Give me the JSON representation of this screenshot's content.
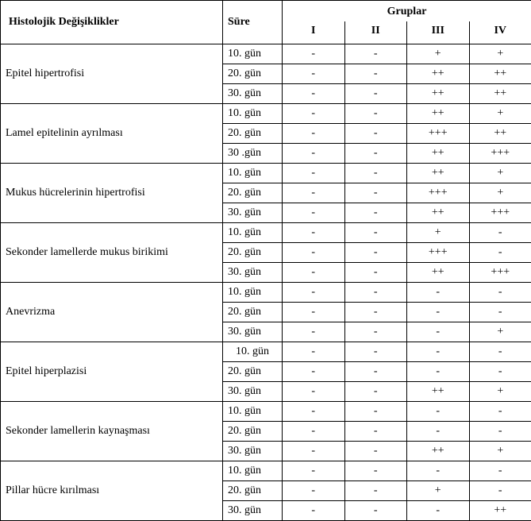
{
  "header": {
    "changes_label": "Histolojik Değişiklikler",
    "sure_label": "Süre",
    "gruplar_label": "Gruplar",
    "group_labels": [
      "I",
      "II",
      "III",
      "IV"
    ]
  },
  "rows": [
    {
      "change": "Epitel hipertrofisi",
      "periods": [
        {
          "sure": "10. gün",
          "sure_align": "left",
          "vals": [
            "-",
            "-",
            "+",
            "+"
          ]
        },
        {
          "sure": "20. gün",
          "sure_align": "left",
          "vals": [
            "-",
            "-",
            "++",
            "++"
          ]
        },
        {
          "sure": "30. gün",
          "sure_align": "left",
          "vals": [
            "-",
            "-",
            "++",
            "++"
          ]
        }
      ]
    },
    {
      "change": "Lamel epitelinin ayrılması",
      "periods": [
        {
          "sure": "10. gün",
          "sure_align": "left",
          "vals": [
            "-",
            "-",
            "++",
            "+"
          ]
        },
        {
          "sure": "20. gün",
          "sure_align": "left",
          "vals": [
            "-",
            "-",
            "+++",
            "++"
          ]
        },
        {
          "sure": "30 .gün",
          "sure_align": "left",
          "vals": [
            "-",
            "-",
            "++",
            "+++"
          ]
        }
      ]
    },
    {
      "change": "Mukus hücrelerinin hipertrofisi",
      "periods": [
        {
          "sure": "10. gün",
          "sure_align": "left",
          "vals": [
            "-",
            "-",
            "++",
            "+"
          ]
        },
        {
          "sure": "20. gün",
          "sure_align": "left",
          "vals": [
            "-",
            "-",
            "+++",
            "+"
          ]
        },
        {
          "sure": "30. gün",
          "sure_align": "left",
          "vals": [
            "-",
            "-",
            "++",
            "+++"
          ]
        }
      ]
    },
    {
      "change": "Sekonder lamellerde mukus birikimi",
      "periods": [
        {
          "sure": "10. gün",
          "sure_align": "left",
          "vals": [
            "-",
            "-",
            "+",
            "-"
          ]
        },
        {
          "sure": "20. gün",
          "sure_align": "left",
          "vals": [
            "-",
            "-",
            "+++",
            "-"
          ]
        },
        {
          "sure": "30. gün",
          "sure_align": "left",
          "vals": [
            "-",
            "-",
            "++",
            "+++"
          ]
        }
      ]
    },
    {
      "change": "Anevrizma",
      "periods": [
        {
          "sure": "10. gün",
          "sure_align": "left",
          "vals": [
            "-",
            "-",
            "-",
            "-"
          ]
        },
        {
          "sure": "20. gün",
          "sure_align": "left",
          "vals": [
            "-",
            "-",
            "-",
            "-"
          ]
        },
        {
          "sure": "30. gün",
          "sure_align": "left",
          "vals": [
            "-",
            "-",
            "-",
            "+"
          ]
        }
      ]
    },
    {
      "change": "Epitel hiperplazisi",
      "periods": [
        {
          "sure": "10. gün",
          "sure_align": "center",
          "vals": [
            "-",
            "-",
            "-",
            "-"
          ]
        },
        {
          "sure": "20. gün",
          "sure_align": "left",
          "vals": [
            "-",
            "-",
            "-",
            "-"
          ]
        },
        {
          "sure": "30. gün",
          "sure_align": "left",
          "vals": [
            "-",
            "-",
            "++",
            "+"
          ]
        }
      ]
    },
    {
      "change": "Sekonder lamellerin kaynaşması",
      "periods": [
        {
          "sure": "10. gün",
          "sure_align": "left",
          "vals": [
            "-",
            "-",
            "-",
            "-"
          ]
        },
        {
          "sure": "20. gün",
          "sure_align": "left",
          "vals": [
            "-",
            "-",
            "-",
            "-"
          ]
        },
        {
          "sure": "30. gün",
          "sure_align": "left",
          "vals": [
            "-",
            "-",
            "++",
            "+"
          ]
        }
      ]
    },
    {
      "change": "Pillar hücre kırılması",
      "periods": [
        {
          "sure": "10. gün",
          "sure_align": "left",
          "vals": [
            "-",
            "-",
            "-",
            "-"
          ]
        },
        {
          "sure": "20. gün",
          "sure_align": "left",
          "vals": [
            "-",
            "-",
            "+",
            "-"
          ]
        },
        {
          "sure": "30. gün",
          "sure_align": "left",
          "vals": [
            "-",
            "-",
            "-",
            "++"
          ]
        }
      ]
    }
  ]
}
